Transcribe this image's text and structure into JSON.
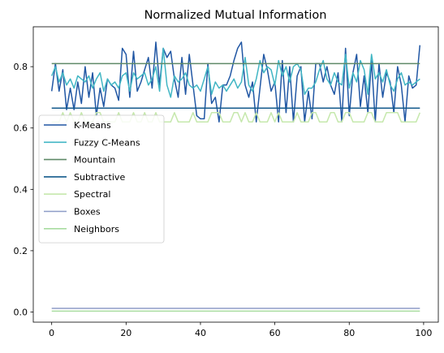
{
  "chart_data": {
    "type": "line",
    "title": "Normalized Mutual Information",
    "xlabel": "",
    "ylabel": "",
    "xlim": [
      -4.95,
      103.95
    ],
    "ylim": [
      -0.033,
      0.93
    ],
    "xticks": [
      0,
      20,
      40,
      60,
      80,
      100
    ],
    "yticks": [
      0.0,
      0.2,
      0.4,
      0.6,
      0.8
    ],
    "ytick_labels": [
      "0.0",
      "0.2",
      "0.4",
      "0.6",
      "0.8"
    ],
    "grid": false,
    "legend_position": "center-left",
    "series": [
      {
        "name": "K-Means",
        "color": "#2157a4",
        "values": [
          0.72,
          0.81,
          0.72,
          0.79,
          0.66,
          0.73,
          0.66,
          0.75,
          0.68,
          0.8,
          0.7,
          0.78,
          0.64,
          0.73,
          0.67,
          0.76,
          0.74,
          0.73,
          0.69,
          0.86,
          0.84,
          0.7,
          0.85,
          0.72,
          0.75,
          0.79,
          0.83,
          0.73,
          0.88,
          0.74,
          0.86,
          0.83,
          0.85,
          0.76,
          0.7,
          0.83,
          0.71,
          0.84,
          0.74,
          0.64,
          0.63,
          0.63,
          0.81,
          0.68,
          0.7,
          0.62,
          0.74,
          0.74,
          0.77,
          0.82,
          0.86,
          0.88,
          0.74,
          0.7,
          0.75,
          0.62,
          0.73,
          0.84,
          0.79,
          0.72,
          0.75,
          0.62,
          0.82,
          0.65,
          0.8,
          0.62,
          0.77,
          0.8,
          0.62,
          0.72,
          0.63,
          0.81,
          0.81,
          0.75,
          0.8,
          0.74,
          0.71,
          0.78,
          0.62,
          0.86,
          0.64,
          0.78,
          0.84,
          0.67,
          0.77,
          0.65,
          0.82,
          0.62,
          0.81,
          0.7,
          0.78,
          0.75,
          0.65,
          0.8,
          0.74,
          0.62,
          0.77,
          0.73,
          0.74,
          0.87
        ]
      },
      {
        "name": "Fuzzy C-Means",
        "color": "#41b6c4",
        "values": [
          0.77,
          0.8,
          0.75,
          0.78,
          0.74,
          0.76,
          0.73,
          0.77,
          0.76,
          0.75,
          0.77,
          0.73,
          0.76,
          0.78,
          0.72,
          0.76,
          0.74,
          0.75,
          0.73,
          0.77,
          0.78,
          0.72,
          0.78,
          0.76,
          0.77,
          0.78,
          0.74,
          0.76,
          0.8,
          0.72,
          0.86,
          0.74,
          0.7,
          0.77,
          0.75,
          0.76,
          0.78,
          0.74,
          0.73,
          0.74,
          0.72,
          0.76,
          0.8,
          0.71,
          0.75,
          0.73,
          0.74,
          0.72,
          0.74,
          0.76,
          0.73,
          0.75,
          0.83,
          0.74,
          0.72,
          0.76,
          0.82,
          0.78,
          0.8,
          0.79,
          0.74,
          0.82,
          0.77,
          0.8,
          0.75,
          0.8,
          0.81,
          0.79,
          0.71,
          0.73,
          0.73,
          0.75,
          0.79,
          0.82,
          0.76,
          0.74,
          0.78,
          0.75,
          0.74,
          0.84,
          0.73,
          0.78,
          0.75,
          0.82,
          0.79,
          0.71,
          0.84,
          0.76,
          0.78,
          0.75,
          0.79,
          0.74,
          0.72,
          0.76,
          0.78,
          0.74,
          0.75,
          0.74,
          0.75,
          0.76
        ]
      },
      {
        "name": "Mountain",
        "color": "#5f8a68",
        "values": [
          0.81,
          0.81
        ]
      },
      {
        "name": "Subtractive",
        "color": "#135a8c",
        "values": [
          0.665,
          0.665
        ]
      },
      {
        "name": "Spectral",
        "color": "#c6e8ad",
        "values": [
          0.62,
          0.62,
          0.62,
          0.65,
          0.62,
          0.65,
          0.62,
          0.62,
          0.65,
          0.62,
          0.62,
          0.62,
          0.65,
          0.65,
          0.62,
          0.62,
          0.62,
          0.62,
          0.65,
          0.62,
          0.62,
          0.62,
          0.65,
          0.62,
          0.62,
          0.65,
          0.62,
          0.62,
          0.65,
          0.62,
          0.62,
          0.62,
          0.62,
          0.65,
          0.62,
          0.62,
          0.62,
          0.62,
          0.65,
          0.62,
          0.62,
          0.62,
          0.62,
          0.65,
          0.65,
          0.65,
          0.62,
          0.62,
          0.62,
          0.65,
          0.65,
          0.62,
          0.65,
          0.62,
          0.62,
          0.65,
          0.62,
          0.62,
          0.62,
          0.65,
          0.62,
          0.65,
          0.62,
          0.62,
          0.62,
          0.62,
          0.65,
          0.62,
          0.62,
          0.62,
          0.65,
          0.65,
          0.62,
          0.62,
          0.62,
          0.65,
          0.65,
          0.62,
          0.62,
          0.65,
          0.65,
          0.62,
          0.62,
          0.62,
          0.62,
          0.65,
          0.65,
          0.62,
          0.62,
          0.62,
          0.65,
          0.65,
          0.65,
          0.65,
          0.62,
          0.62,
          0.62,
          0.62,
          0.62,
          0.65
        ]
      },
      {
        "name": "Boxes",
        "color": "#8d9cc7",
        "values": [
          0.012,
          0.012
        ]
      },
      {
        "name": "Neighbors",
        "color": "#a8dca0",
        "values": [
          0.003,
          0.003
        ]
      }
    ]
  }
}
